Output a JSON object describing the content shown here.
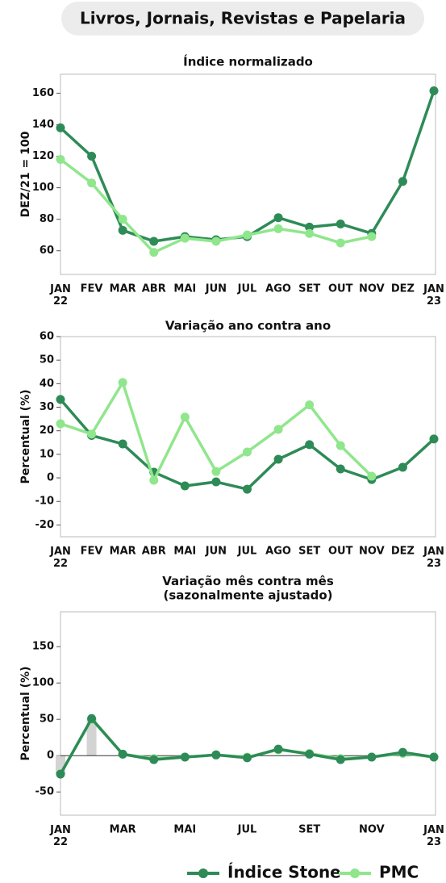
{
  "title": "Livros, Jornais, Revistas e Papelaria",
  "chart_data": [
    {
      "type": "line",
      "title": "Índice normalizado",
      "y_label": "DEZ/21 = 100",
      "categories": [
        "JAN\n22",
        "FEV",
        "MAR",
        "ABR",
        "MAI",
        "JUN",
        "JUL",
        "AGO",
        "SET",
        "OUT",
        "NOV",
        "DEZ",
        "JAN\n23"
      ],
      "series": [
        {
          "name": "Índice Stone",
          "color": "#2e8b57",
          "values": [
            138,
            120,
            73,
            66,
            69,
            67,
            69,
            81,
            75,
            77,
            71,
            104,
            161.5
          ]
        },
        {
          "name": "PMC",
          "color": "#90e68c",
          "values": [
            118,
            103,
            80,
            59,
            68,
            66,
            70,
            74,
            71,
            65,
            69,
            null,
            null
          ]
        }
      ],
      "ylim": [
        45,
        172
      ],
      "yticks": [
        60,
        80,
        100,
        120,
        140,
        160
      ]
    },
    {
      "type": "line",
      "title": "Variação ano contra ano",
      "y_label": "Percentual (%)",
      "categories": [
        "JAN\n22",
        "FEV",
        "MAR",
        "ABR",
        "MAI",
        "JUN",
        "JUL",
        "AGO",
        "SET",
        "OUT",
        "NOV",
        "DEZ",
        "JAN\n23"
      ],
      "series": [
        {
          "color": "#2e8b57",
          "values": [
            33.3,
            18,
            14.4,
            2.4,
            -3.4,
            -1.7,
            -4.8,
            7.9,
            14.1,
            3.8,
            -0.7,
            4.5,
            16.5
          ]
        },
        {
          "color": "#90e68c",
          "values": [
            23,
            18.6,
            40.5,
            -1,
            25.8,
            2.7,
            11,
            20.6,
            31,
            13.7,
            0.7,
            null,
            null
          ]
        }
      ],
      "ylim": [
        -25,
        60
      ],
      "yticks": [
        -20,
        -10,
        0,
        10,
        20,
        30,
        40,
        50,
        60
      ]
    },
    {
      "type": "line",
      "title": "Variação mês contra mês\n(sazonalmente ajustado)",
      "y_label": "Percentual (%)",
      "categories": [
        "JAN\n22",
        null,
        "MAR",
        null,
        "MAI",
        null,
        "JUL",
        null,
        "SET",
        null,
        "NOV",
        null,
        "JAN\n23"
      ],
      "bars": {
        "color": "#d3d3d3",
        "values": [
          -25.5,
          51,
          null,
          null,
          null,
          null,
          null,
          null,
          null,
          null,
          null,
          null,
          null
        ]
      },
      "series": [
        {
          "color": "#90e68c",
          "values": [
            -25,
            50,
            2,
            -4,
            -2,
            1,
            -2,
            8,
            3,
            -4,
            -2,
            3,
            -2
          ]
        },
        {
          "color": "#2e8b57",
          "values": [
            -25.5,
            51,
            2,
            -5.5,
            -2,
            1,
            -3,
            9,
            2,
            -5.5,
            -2,
            4.5,
            -2
          ]
        }
      ],
      "zero_line": true,
      "ylim": [
        -82,
        198
      ],
      "yticks": [
        -50,
        0,
        50,
        100,
        150
      ]
    }
  ]
}
